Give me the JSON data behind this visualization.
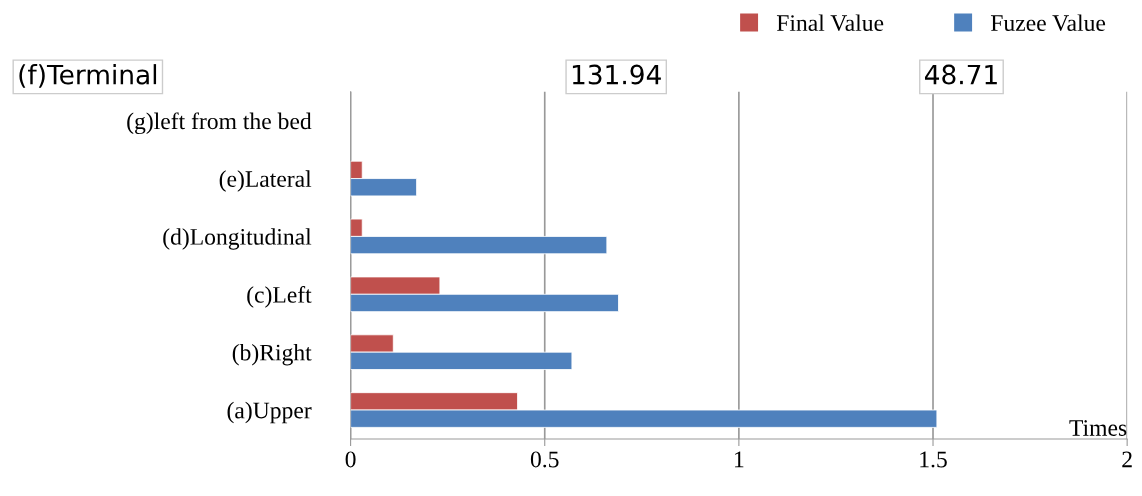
{
  "chart_data": {
    "type": "bar",
    "orientation": "horizontal",
    "xlabel": "Times",
    "categories": [
      "(g)left from the bed",
      "(e)Lateral",
      "(d)Longitudinal",
      "(c)Left",
      "(b)Right",
      "(a)Upper"
    ],
    "series": [
      {
        "name": "Final Value",
        "color": "#c0504d",
        "values": [
          null,
          0.03,
          0.03,
          0.23,
          0.11,
          0.43
        ]
      },
      {
        "name": "Fuzee Value",
        "color": "#4f81bd",
        "values": [
          null,
          0.17,
          0.66,
          0.69,
          0.57,
          1.51
        ]
      }
    ],
    "xlim": [
      0,
      2
    ],
    "xticks": [
      0,
      0.5,
      1,
      1.5,
      2
    ],
    "grid": "x",
    "legend": "top right",
    "annotations": [
      "(f)Terminal",
      "131.94",
      "48.71"
    ]
  }
}
